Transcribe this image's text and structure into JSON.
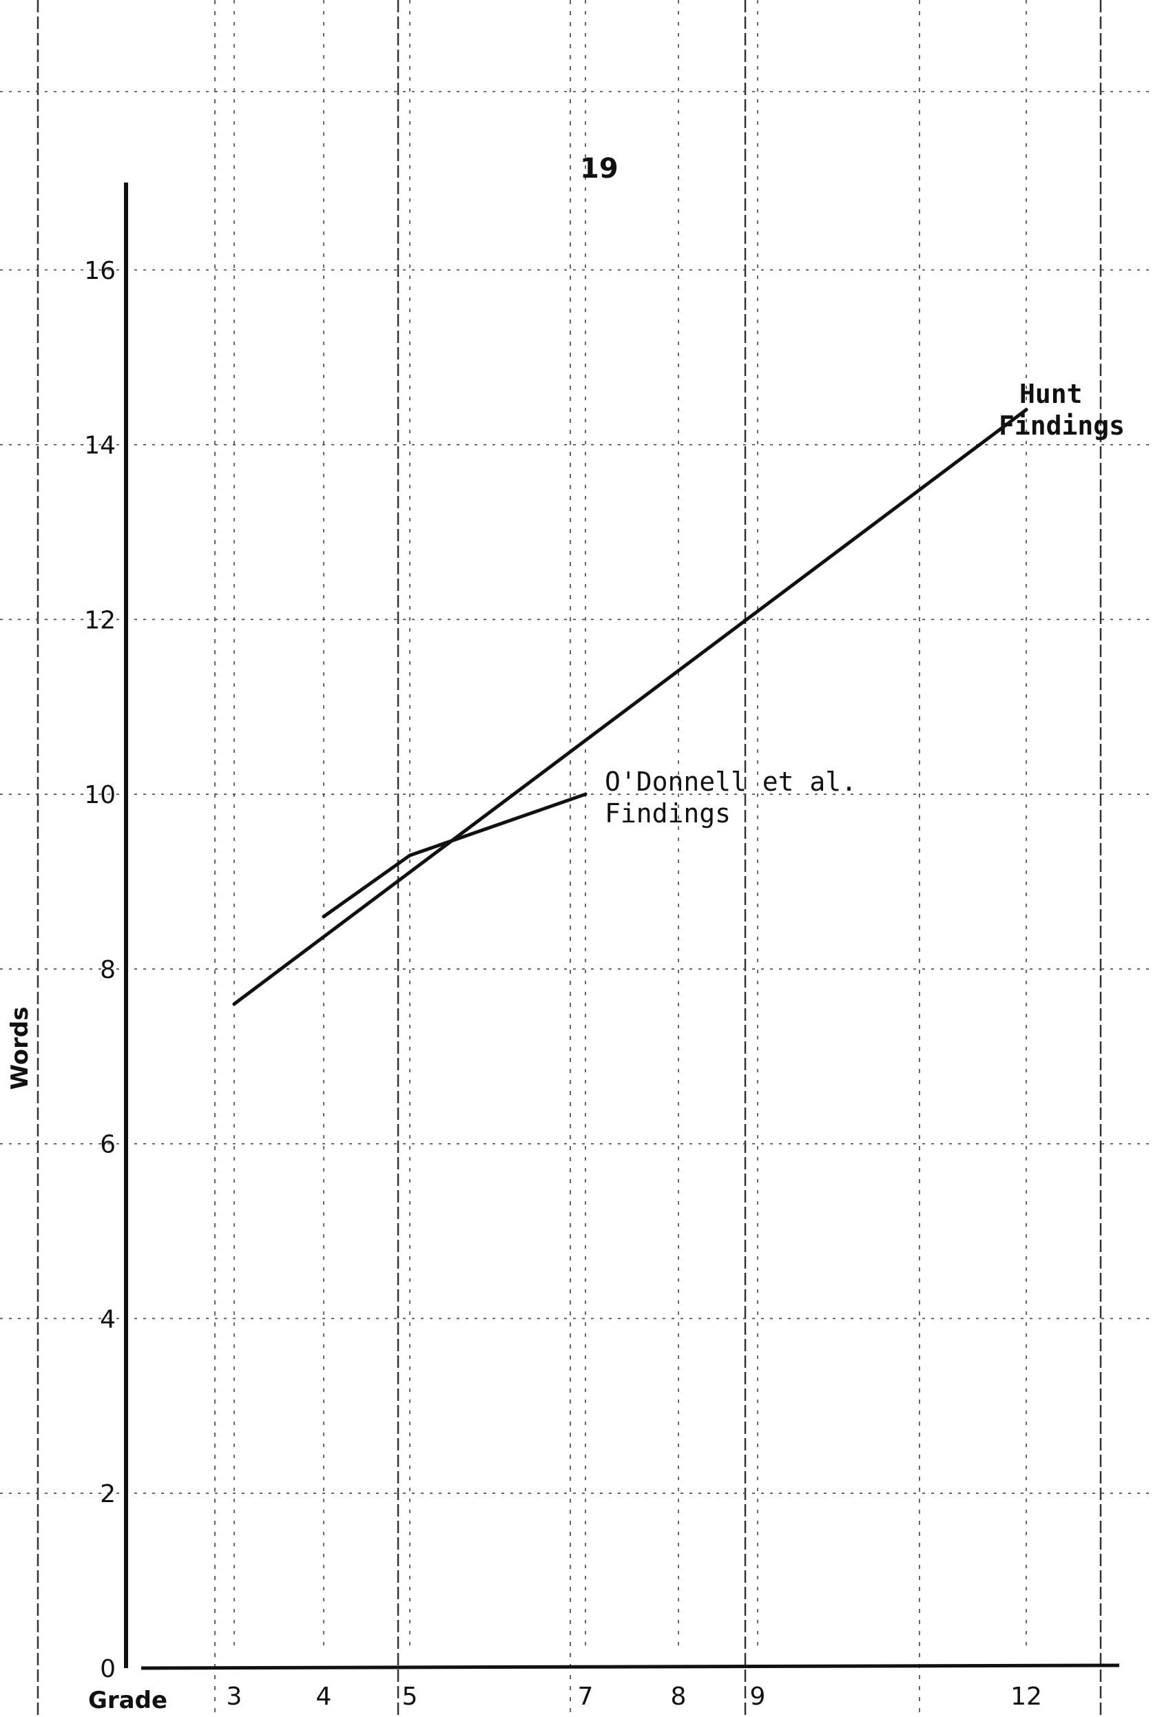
{
  "page_number": "19",
  "chart_data": {
    "type": "line",
    "title": "",
    "xlabel": "Grade",
    "ylabel": "Words",
    "x_ticks": [
      3,
      4,
      5,
      7,
      8,
      9,
      12
    ],
    "y_ticks": [
      0,
      2,
      4,
      6,
      8,
      10,
      12,
      14,
      16
    ],
    "xlim": [
      2.6,
      13.2
    ],
    "ylim": [
      0,
      17
    ],
    "grid": true,
    "series": [
      {
        "name_lines": [
          "Hunt",
          "Findings"
        ],
        "points": [
          {
            "x": 3,
            "y": 7.6
          },
          {
            "x": 12,
            "y": 14.4
          }
        ]
      },
      {
        "name_lines": [
          "O'Donnell et al.",
          "Findings"
        ],
        "points": [
          {
            "x": 4,
            "y": 8.6
          },
          {
            "x": 5,
            "y": 9.3
          },
          {
            "x": 7,
            "y": 10.0
          }
        ]
      }
    ]
  }
}
